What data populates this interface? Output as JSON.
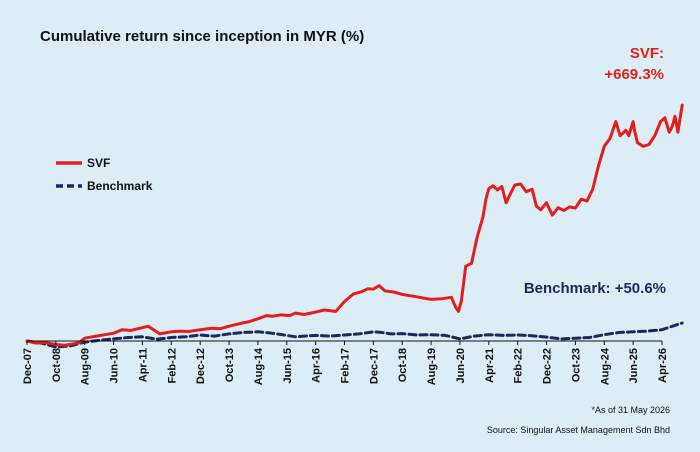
{
  "chart_data": {
    "type": "line",
    "title": "Cumulative return since inception in MYR (%)",
    "xlabel": "",
    "ylabel": "",
    "ylim": [
      -5,
      700
    ],
    "grid": false,
    "legend_position": "left",
    "categories": [
      "Dec-07",
      "Oct-08",
      "Aug-09",
      "Jun-10",
      "Apr-11",
      "Feb-12",
      "Dec-12",
      "Oct-13",
      "Aug-14",
      "Jun-15",
      "Apr-16",
      "Feb-17",
      "Dec-17",
      "Oct-18",
      "Aug-19",
      "Jun-20",
      "Apr-21",
      "Feb-22",
      "Dec-22",
      "Oct-23",
      "Aug-24",
      "Jun-25",
      "Apr-26"
    ],
    "series": [
      {
        "name": "SVF",
        "color": "#e31e1e",
        "style": "solid",
        "points": [
          [
            0,
            0
          ],
          [
            0.3,
            -6
          ],
          [
            0.6,
            -4
          ],
          [
            1,
            -10
          ],
          [
            1.3,
            -12
          ],
          [
            1.6,
            -8
          ],
          [
            1.8,
            -5
          ],
          [
            2,
            8
          ],
          [
            2.4,
            14
          ],
          [
            2.7,
            18
          ],
          [
            3,
            22
          ],
          [
            3.3,
            32
          ],
          [
            3.6,
            30
          ],
          [
            3.9,
            36
          ],
          [
            4.2,
            42
          ],
          [
            4.6,
            20
          ],
          [
            5,
            26
          ],
          [
            5.3,
            28
          ],
          [
            5.6,
            27
          ],
          [
            6,
            32
          ],
          [
            6.4,
            36
          ],
          [
            6.7,
            35
          ],
          [
            7,
            42
          ],
          [
            7.4,
            50
          ],
          [
            7.7,
            55
          ],
          [
            8,
            63
          ],
          [
            8.3,
            72
          ],
          [
            8.5,
            70
          ],
          [
            8.8,
            74
          ],
          [
            9.1,
            72
          ],
          [
            9.3,
            79
          ],
          [
            9.6,
            75
          ],
          [
            10,
            82
          ],
          [
            10.3,
            88
          ],
          [
            10.7,
            84
          ],
          [
            11,
            112
          ],
          [
            11.3,
            133
          ],
          [
            11.6,
            140
          ],
          [
            11.8,
            148
          ],
          [
            12,
            147
          ],
          [
            12.2,
            157
          ],
          [
            12.4,
            142
          ],
          [
            12.7,
            139
          ],
          [
            13,
            132
          ],
          [
            13.3,
            128
          ],
          [
            13.6,
            124
          ],
          [
            14,
            118
          ],
          [
            14.4,
            120
          ],
          [
            14.7,
            124
          ],
          [
            14.85,
            96
          ],
          [
            14.95,
            84
          ],
          [
            15.05,
            114
          ],
          [
            15.2,
            212
          ],
          [
            15.4,
            220
          ],
          [
            15.6,
            296
          ],
          [
            15.8,
            352
          ],
          [
            15.9,
            402
          ],
          [
            16,
            432
          ],
          [
            16.15,
            440
          ],
          [
            16.3,
            428
          ],
          [
            16.45,
            438
          ],
          [
            16.6,
            392
          ],
          [
            16.75,
            418
          ],
          [
            16.9,
            442
          ],
          [
            17.1,
            445
          ],
          [
            17.3,
            423
          ],
          [
            17.5,
            430
          ],
          [
            17.65,
            382
          ],
          [
            17.8,
            372
          ],
          [
            18,
            392
          ],
          [
            18.2,
            357
          ],
          [
            18.4,
            378
          ],
          [
            18.6,
            370
          ],
          [
            18.8,
            380
          ],
          [
            19,
            377
          ],
          [
            19.2,
            402
          ],
          [
            19.4,
            397
          ],
          [
            19.6,
            430
          ],
          [
            19.8,
            497
          ],
          [
            20,
            552
          ],
          [
            20.2,
            574
          ],
          [
            20.4,
            622
          ],
          [
            20.55,
            582
          ],
          [
            20.75,
            597
          ],
          [
            20.85,
            582
          ],
          [
            21,
            622
          ],
          [
            21.05,
            596
          ],
          [
            21.15,
            562
          ],
          [
            21.35,
            552
          ],
          [
            21.55,
            557
          ],
          [
            21.75,
            582
          ],
          [
            21.95,
            622
          ],
          [
            22.1,
            633
          ],
          [
            22.25,
            592
          ],
          [
            22.35,
            607
          ],
          [
            22.45,
            637
          ],
          [
            22.55,
            592
          ],
          [
            22.7,
            669
          ]
        ]
      },
      {
        "name": "Benchmark",
        "color": "#1b2a5b",
        "style": "dashed",
        "points": [
          [
            0,
            0
          ],
          [
            0.5,
            -6
          ],
          [
            1,
            -17
          ],
          [
            1.5,
            -14
          ],
          [
            2,
            -3
          ],
          [
            2.5,
            2
          ],
          [
            3,
            6
          ],
          [
            3.5,
            10
          ],
          [
            4,
            12
          ],
          [
            4.5,
            5
          ],
          [
            5,
            10
          ],
          [
            5.5,
            12
          ],
          [
            6,
            17
          ],
          [
            6.5,
            14
          ],
          [
            7,
            20
          ],
          [
            7.5,
            24
          ],
          [
            8,
            26
          ],
          [
            8.5,
            22
          ],
          [
            9,
            16
          ],
          [
            9.3,
            12
          ],
          [
            9.6,
            14
          ],
          [
            10,
            16
          ],
          [
            10.5,
            14
          ],
          [
            11,
            17
          ],
          [
            11.5,
            20
          ],
          [
            12,
            26
          ],
          [
            12.3,
            24
          ],
          [
            12.6,
            20
          ],
          [
            13,
            21
          ],
          [
            13.5,
            17
          ],
          [
            14,
            18
          ],
          [
            14.5,
            16
          ],
          [
            15,
            6
          ],
          [
            15.5,
            14
          ],
          [
            16,
            18
          ],
          [
            16.5,
            16
          ],
          [
            17,
            17
          ],
          [
            17.5,
            15
          ],
          [
            18,
            11
          ],
          [
            18.5,
            6
          ],
          [
            19,
            8
          ],
          [
            19.5,
            10
          ],
          [
            20,
            18
          ],
          [
            20.5,
            24
          ],
          [
            21,
            26
          ],
          [
            21.5,
            28
          ],
          [
            22,
            32
          ],
          [
            22.7,
            51
          ]
        ]
      }
    ],
    "annotations": {
      "svf_label": "SVF:",
      "svf_value": "+669.3%",
      "benchmark": "Benchmark: +50.6%"
    }
  },
  "footnotes": {
    "as_of": "*As of 31 May 2026",
    "source": "Source: Singular Asset Management Sdn Bhd"
  }
}
